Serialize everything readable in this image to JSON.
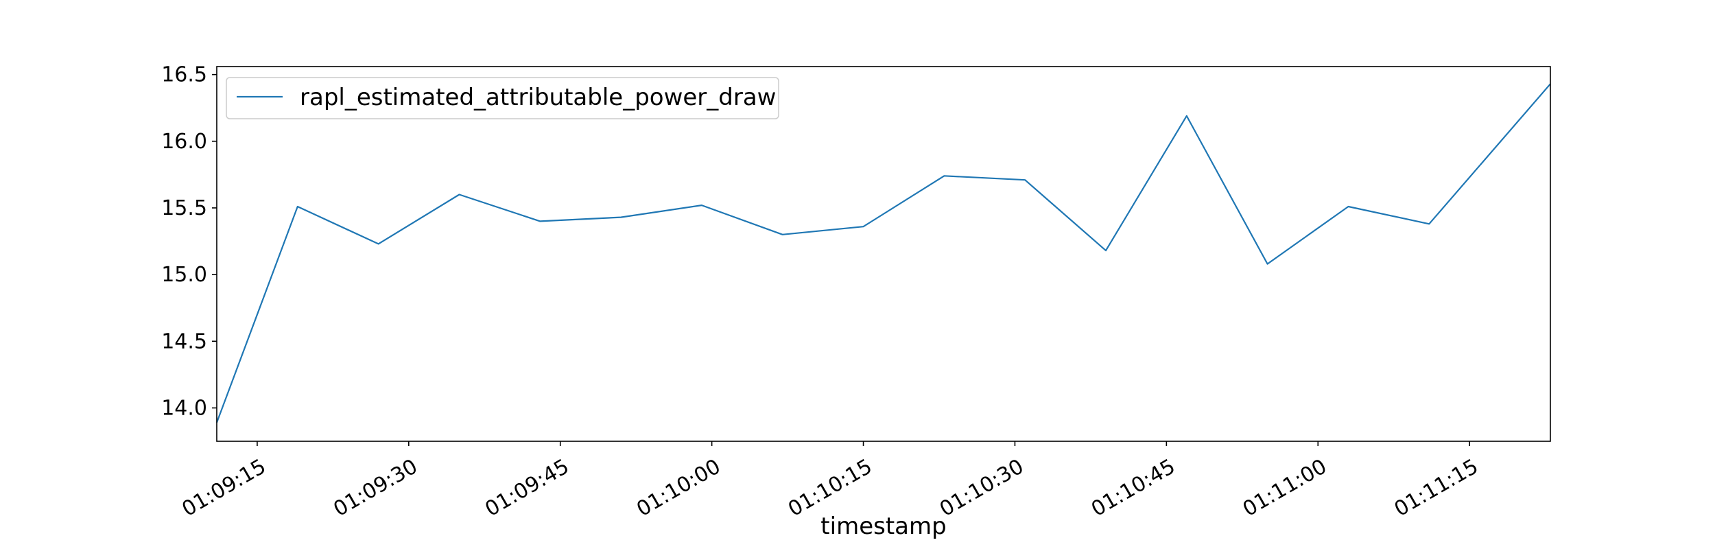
{
  "chart_data": {
    "type": "line",
    "title": "",
    "xlabel": "timestamp",
    "ylabel": "",
    "xlim": [
      "01:09:11",
      "01:11:23"
    ],
    "ylim": [
      13.75,
      16.56
    ],
    "x_ticks": [
      "01:09:15",
      "01:09:30",
      "01:09:45",
      "01:10:00",
      "01:10:15",
      "01:10:30",
      "01:10:45",
      "01:11:00",
      "01:11:15"
    ],
    "y_ticks": [
      14.0,
      14.5,
      15.0,
      15.5,
      16.0,
      16.5
    ],
    "y_tick_labels": [
      "14.0",
      "14.5",
      "15.0",
      "15.5",
      "16.0",
      "16.5"
    ],
    "grid": false,
    "legend_position": "top-left",
    "series": [
      {
        "name": "rapl_estimated_attributable_power_draw",
        "color": "#1f77b4",
        "x": [
          "01:09:11",
          "01:09:19",
          "01:09:27",
          "01:09:35",
          "01:09:43",
          "01:09:51",
          "01:09:59",
          "01:10:07",
          "01:10:15",
          "01:10:23",
          "01:10:31",
          "01:10:39",
          "01:10:47",
          "01:10:55",
          "01:11:03",
          "01:11:11",
          "01:11:23"
        ],
        "values": [
          13.89,
          15.51,
          15.23,
          15.6,
          15.4,
          15.43,
          15.52,
          15.3,
          15.36,
          15.74,
          15.71,
          15.18,
          16.19,
          15.08,
          15.51,
          15.38,
          16.43
        ]
      }
    ]
  }
}
